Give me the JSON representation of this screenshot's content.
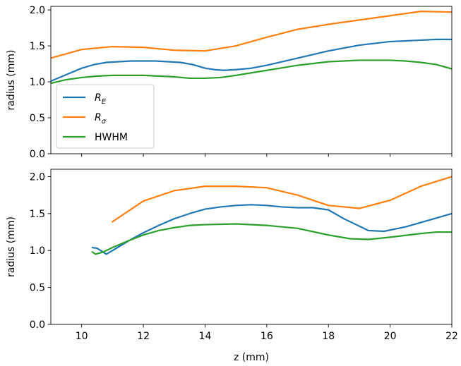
{
  "chart_data": {
    "type": "line",
    "x_axis": {
      "label": "z (mm)",
      "range": [
        9,
        22
      ],
      "ticks": [
        10,
        12,
        14,
        16,
        18,
        20,
        22
      ],
      "tick_labels": [
        "10",
        "12",
        "14",
        "16",
        "18",
        "20",
        "22"
      ]
    },
    "panels": [
      {
        "ylabel": "radius (mm)",
        "ylim": [
          0.0,
          2.05
        ],
        "yticks": [
          0.0,
          0.5,
          1.0,
          1.5,
          2.0
        ],
        "ytick_labels": [
          "0.0",
          "0.5",
          "1.0",
          "1.5",
          "2.0"
        ],
        "legend": {
          "position": "center-left",
          "entries": [
            {
              "series": "R_E",
              "main": "R",
              "sub": "E"
            },
            {
              "series": "R_sigma",
              "main": "R",
              "sub": "σ"
            },
            {
              "series": "HWHM",
              "main": "HWHM",
              "sub": ""
            }
          ]
        },
        "series": [
          {
            "name": "R_E",
            "color": "#1f77b4",
            "x": [
              9.0,
              9.5,
              10.0,
              10.4,
              10.8,
              11.2,
              11.6,
              12.0,
              12.4,
              12.8,
              13.2,
              13.6,
              14.0,
              14.3,
              14.6,
              15.0,
              15.5,
              16.0,
              17.0,
              18.0,
              19.0,
              20.0,
              21.0,
              21.5,
              22.0
            ],
            "y": [
              1.01,
              1.1,
              1.19,
              1.24,
              1.27,
              1.28,
              1.29,
              1.29,
              1.29,
              1.28,
              1.27,
              1.24,
              1.19,
              1.17,
              1.16,
              1.17,
              1.19,
              1.23,
              1.33,
              1.43,
              1.51,
              1.56,
              1.58,
              1.59,
              1.59
            ]
          },
          {
            "name": "R_sigma",
            "color": "#ff7f0e",
            "x": [
              9.0,
              10.0,
              11.0,
              12.0,
              13.0,
              14.0,
              15.0,
              16.0,
              17.0,
              18.0,
              19.0,
              20.0,
              21.0,
              22.0
            ],
            "y": [
              1.33,
              1.45,
              1.49,
              1.48,
              1.44,
              1.43,
              1.5,
              1.62,
              1.73,
              1.8,
              1.86,
              1.92,
              1.98,
              1.97
            ]
          },
          {
            "name": "HWHM",
            "color": "#2ca02c",
            "x": [
              9.0,
              9.5,
              10.0,
              10.5,
              11.0,
              11.5,
              12.0,
              12.5,
              13.0,
              13.5,
              14.0,
              14.5,
              15.0,
              16.0,
              17.0,
              18.0,
              18.5,
              19.0,
              19.5,
              20.0,
              20.5,
              21.0,
              21.5,
              22.0
            ],
            "y": [
              0.98,
              1.03,
              1.06,
              1.08,
              1.09,
              1.09,
              1.09,
              1.08,
              1.07,
              1.05,
              1.05,
              1.06,
              1.09,
              1.16,
              1.23,
              1.28,
              1.29,
              1.3,
              1.3,
              1.3,
              1.29,
              1.27,
              1.24,
              1.18
            ]
          }
        ]
      },
      {
        "ylabel": "radius (mm)",
        "ylim": [
          0.0,
          2.1
        ],
        "yticks": [
          0.0,
          0.5,
          1.0,
          1.5,
          2.0
        ],
        "ytick_labels": [
          "0.0",
          "0.5",
          "1.0",
          "1.5",
          "2.0"
        ],
        "series": [
          {
            "name": "R_E",
            "color": "#1f77b4",
            "x": [
              10.35,
              10.5,
              10.8,
              11.2,
              11.6,
              12.0,
              12.5,
              13.0,
              13.5,
              14.0,
              14.5,
              15.0,
              15.5,
              16.0,
              16.5,
              17.0,
              17.5,
              18.0,
              18.5,
              19.3,
              19.8,
              20.5,
              21.0,
              21.5,
              22.0
            ],
            "y": [
              1.04,
              1.03,
              0.95,
              1.05,
              1.15,
              1.24,
              1.34,
              1.43,
              1.5,
              1.56,
              1.59,
              1.61,
              1.62,
              1.61,
              1.59,
              1.58,
              1.58,
              1.55,
              1.43,
              1.27,
              1.26,
              1.32,
              1.38,
              1.44,
              1.5
            ]
          },
          {
            "name": "R_sigma",
            "color": "#ff7f0e",
            "x": [
              11.0,
              12.0,
              13.0,
              14.0,
              15.0,
              16.0,
              17.0,
              18.0,
              19.0,
              20.0,
              21.0,
              22.0
            ],
            "y": [
              1.39,
              1.67,
              1.81,
              1.87,
              1.87,
              1.85,
              1.75,
              1.61,
              1.57,
              1.68,
              1.87,
              2.0
            ]
          },
          {
            "name": "HWHM",
            "color": "#2ca02c",
            "x": [
              10.35,
              10.45,
              10.7,
              11.0,
              11.5,
              12.0,
              12.5,
              13.0,
              13.5,
              14.0,
              15.0,
              16.0,
              17.0,
              18.0,
              18.7,
              19.3,
              20.0,
              21.0,
              21.5,
              22.0
            ],
            "y": [
              0.98,
              0.95,
              0.98,
              1.04,
              1.13,
              1.21,
              1.27,
              1.31,
              1.34,
              1.35,
              1.36,
              1.34,
              1.3,
              1.21,
              1.16,
              1.15,
              1.18,
              1.23,
              1.25,
              1.25
            ]
          }
        ]
      }
    ]
  }
}
